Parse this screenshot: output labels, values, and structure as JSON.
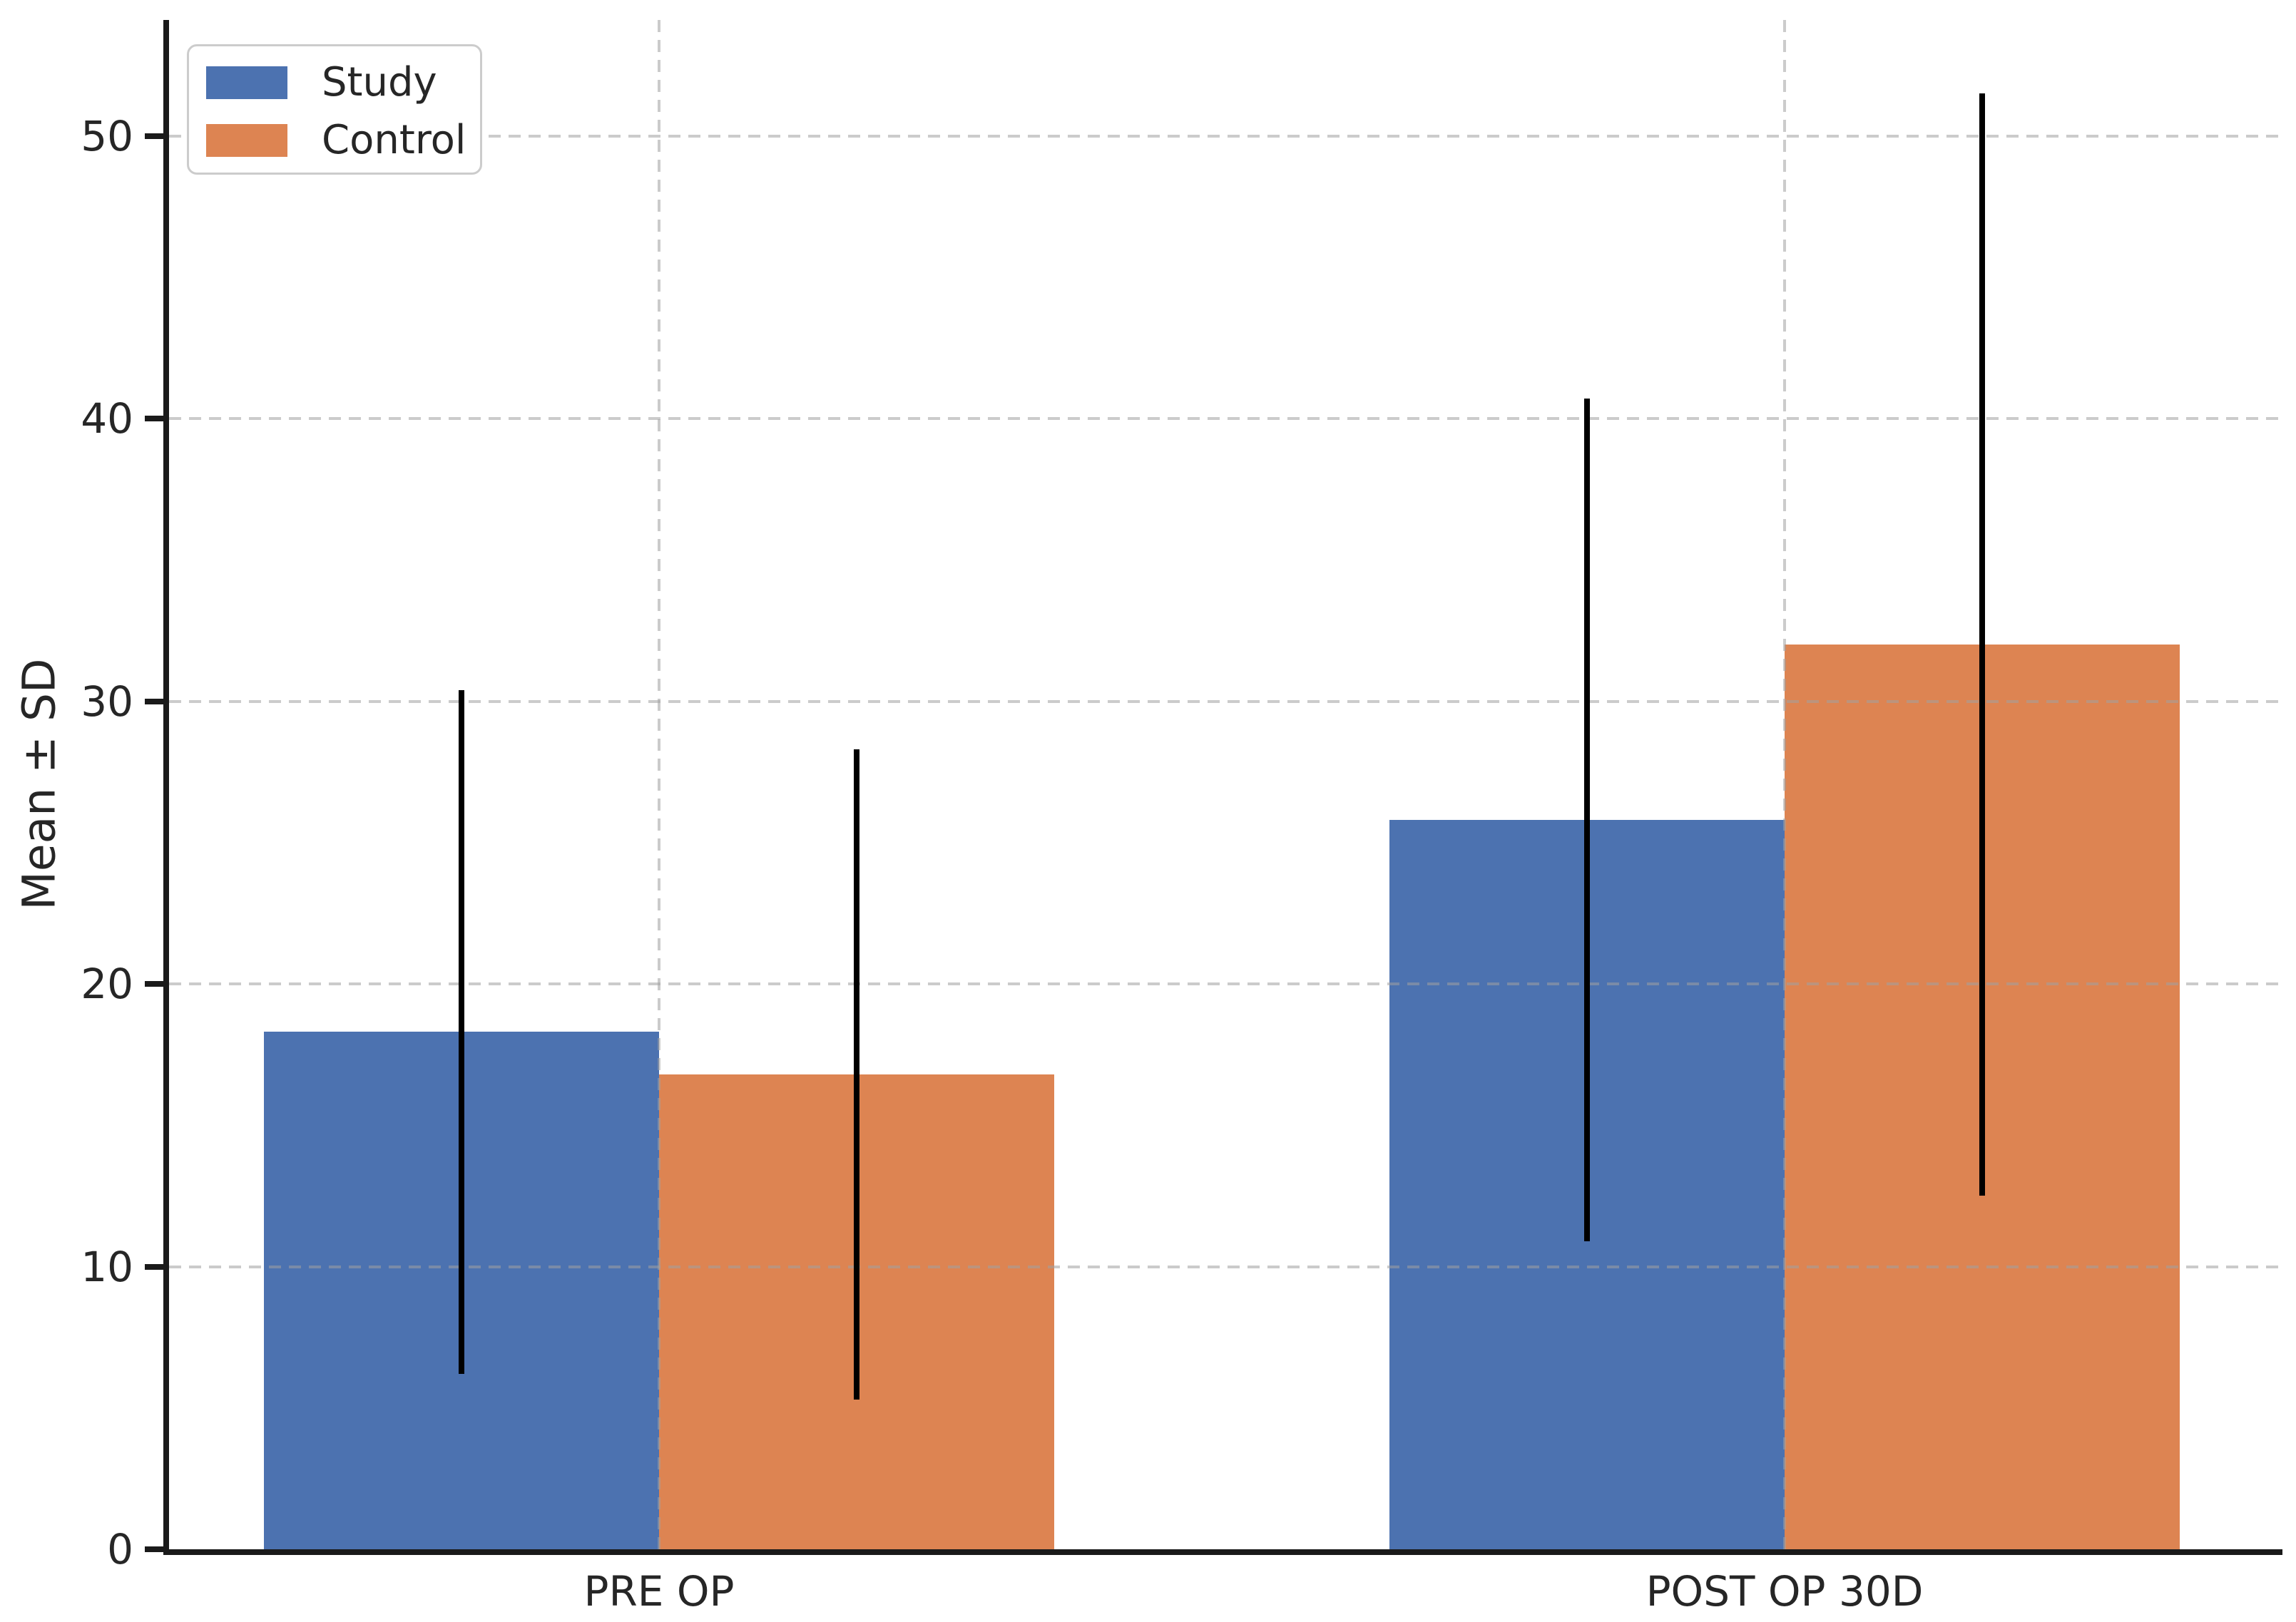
{
  "chart_data": {
    "type": "bar",
    "title": "",
    "categories": [
      "PRE OP",
      "POST OP 30D"
    ],
    "series": [
      {
        "name": "Study",
        "color": "#4C72B0",
        "values": [
          18.3,
          25.8
        ],
        "sd": [
          12.1,
          14.9
        ]
      },
      {
        "name": "Control",
        "color": "#DD8452",
        "values": [
          16.8,
          32.0
        ],
        "sd": [
          11.5,
          19.5
        ]
      }
    ],
    "error_bars": true,
    "error_bar_color": "#000000",
    "ylabel": "Mean ± SD",
    "xlabel": "",
    "yticks": [
      0,
      10,
      20,
      30,
      40,
      50
    ],
    "ylim": [
      0,
      54.1
    ],
    "grid": {
      "horizontal": true,
      "vertical": true,
      "style": "dashed",
      "color": "#cbcbcb",
      "drawn_over_bars": true
    },
    "legend": {
      "position": "upper-left",
      "entries": [
        "Study",
        "Control"
      ]
    },
    "axis_color": "#1a1a1a",
    "background": "#ffffff"
  }
}
